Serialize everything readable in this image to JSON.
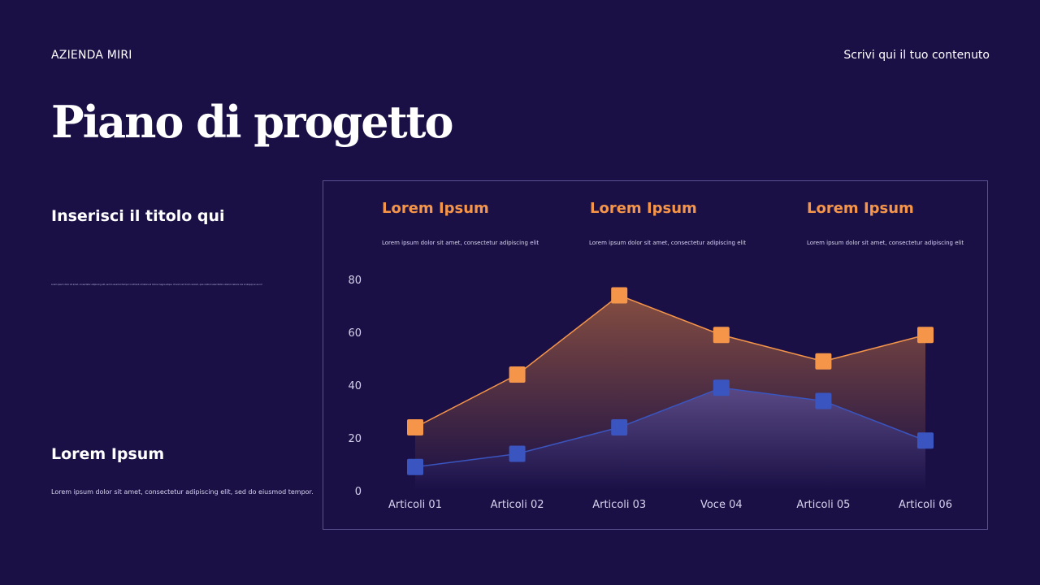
{
  "header": {
    "company": "AZIENDA MIRI",
    "top_right": "Scrivi qui il tuo contenuto",
    "title": "Piano di progetto"
  },
  "left": {
    "subtitle": "Inserisci il titolo qui",
    "tiny_text": "Lorem ipsum dolor sit amet, consectetur adipiscing elit, sed do eiusmod tempor incididunt ut labore et dolore magna aliqua. Ut enim ad minim veniam, quis nostrud exercitation ullamco laboris nisi ut aliquip ex ea commodo consequat.",
    "heading": "Lorem Ipsum",
    "text": "Lorem ipsum dolor sit amet, consectetur adipiscing elit, sed do eiusmod tempor."
  },
  "columns": [
    {
      "title": "Lorem Ipsum",
      "text": "Lorem ipsum dolor sit amet, consectetur adipiscing elit"
    },
    {
      "title": "Lorem Ipsum",
      "text": "Lorem ipsum dolor sit amet, consectetur adipiscing elit"
    },
    {
      "title": "Lorem Ipsum",
      "text": "Lorem ipsum dolor sit amet, consectetur adipiscing elit"
    }
  ],
  "colors": {
    "background": "#1a1046",
    "orange": "#f5954a",
    "blue": "#3a55c0",
    "accent_text": "#f5954a"
  },
  "chart_data": {
    "type": "area",
    "categories": [
      "Articoli 01",
      "Articoli 02",
      "Articoli 03",
      "Voce 04",
      "Articoli 05",
      "Articoli 06"
    ],
    "ylim": [
      0,
      80
    ],
    "yticks": [
      0,
      20,
      40,
      60,
      80
    ],
    "grid": false,
    "series": [
      {
        "values": [
          24,
          44,
          74,
          59,
          49,
          59
        ],
        "color": "#f5954a",
        "marker": "square"
      },
      {
        "values": [
          9,
          14,
          24,
          39,
          34,
          19
        ],
        "color": "#3a55c0",
        "marker": "square"
      }
    ]
  }
}
